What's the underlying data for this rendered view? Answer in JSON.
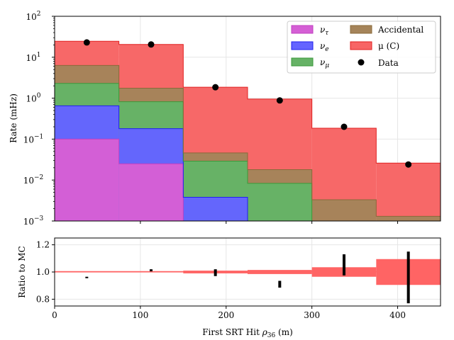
{
  "chart_data": [
    {
      "type": "area",
      "subtype": "stacked-step-histogram",
      "ylabel": "Rate (mHz)",
      "yscale": "log",
      "ylim": [
        0.001,
        100
      ],
      "xlim": [
        0,
        450
      ],
      "y_ticks": [
        {
          "value": 0.001,
          "base": "10",
          "exp": "−3"
        },
        {
          "value": 0.01,
          "base": "10",
          "exp": "−2"
        },
        {
          "value": 0.1,
          "base": "10",
          "exp": "−1"
        },
        {
          "value": 1,
          "base": "10",
          "exp": "0"
        },
        {
          "value": 10,
          "base": "10",
          "exp": "1"
        },
        {
          "value": 100,
          "base": "10",
          "exp": "2"
        }
      ],
      "grid": true,
      "legend_position": "top-right",
      "bin_edges": [
        0,
        75,
        150,
        225,
        300,
        375,
        450
      ],
      "series": [
        {
          "name": "ν",
          "sub": "τ",
          "color": "#d55fd5",
          "edge": "#c040c0",
          "cumulative": [
            0.1,
            0.025,
            0.001,
            0.001,
            0.001,
            0.001
          ]
        },
        {
          "name": "ν",
          "sub": "e",
          "color": "#6464ff",
          "edge": "#2020ee",
          "cumulative": [
            0.65,
            0.18,
            0.0038,
            0.001,
            0.001,
            0.001
          ]
        },
        {
          "name": "ν",
          "sub": "μ",
          "color": "#66b266",
          "edge": "#3a9a3a",
          "cumulative": [
            2.3,
            0.82,
            0.029,
            0.0083,
            0.001,
            0.001
          ]
        },
        {
          "name": "Accidental",
          "sub": "",
          "color": "#a5845a",
          "edge": "#8a6a3a",
          "cumulative": [
            6.3,
            1.75,
            0.046,
            0.018,
            0.0033,
            0.0013
          ]
        },
        {
          "name": "μ (C)",
          "sub": "",
          "color": "#f76565",
          "edge": "#e02020",
          "cumulative": [
            24.5,
            20.5,
            1.85,
            0.95,
            0.185,
            0.026
          ]
        }
      ],
      "data_points": {
        "name": "Data",
        "x": [
          37.5,
          112.5,
          187.5,
          262.5,
          337.5,
          412.5
        ],
        "y": [
          23,
          20.5,
          1.85,
          0.88,
          0.2,
          0.024
        ]
      }
    },
    {
      "type": "bar",
      "subtype": "ratio-panel",
      "xlabel_main": "First SRT Hit ",
      "xlabel_symbol": "ρ",
      "xlabel_sub": "36",
      "xlabel_unit": " (m)",
      "ylabel": "Ratio to MC",
      "ylim": [
        0.75,
        1.25
      ],
      "xlim": [
        0,
        450
      ],
      "x_ticks": [
        "0",
        "100",
        "200",
        "300",
        "400"
      ],
      "y_ticks": [
        "0.8",
        "1.0",
        "1.2"
      ],
      "grid": true,
      "band_color": "#ff6464",
      "band_low": [
        0.997,
        0.997,
        0.99,
        0.985,
        0.965,
        0.905
      ],
      "band_high": [
        1.003,
        1.003,
        1.01,
        1.015,
        1.035,
        1.095
      ],
      "ratio_x": [
        37.5,
        112.5,
        187.5,
        262.5,
        337.5,
        412.5
      ],
      "ratio_low": [
        0.955,
        1.005,
        0.97,
        0.885,
        0.975,
        0.77
      ],
      "ratio_high": [
        0.965,
        1.02,
        1.02,
        0.935,
        1.13,
        1.15
      ]
    }
  ]
}
